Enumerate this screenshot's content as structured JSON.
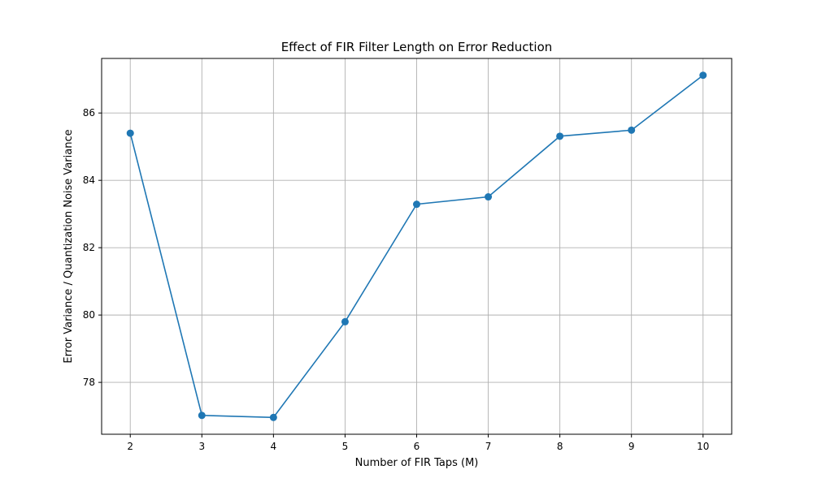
{
  "chart_data": {
    "type": "line",
    "title": "Effect of FIR Filter Length on Error Reduction",
    "xlabel": "Number of FIR Taps (M)",
    "ylabel": "Error Variance / Quantization Noise Variance",
    "x": [
      2,
      3,
      4,
      5,
      6,
      7,
      8,
      9,
      10
    ],
    "series": [
      {
        "values": [
          85.4,
          77.02,
          76.96,
          79.8,
          83.29,
          83.51,
          85.31,
          85.49,
          87.12
        ],
        "color": "#1f77b4",
        "marker": "circle"
      }
    ],
    "xticks": [
      2,
      3,
      4,
      5,
      6,
      7,
      8,
      9,
      10
    ],
    "yticks": [
      78,
      80,
      82,
      84,
      86
    ],
    "xlim": [
      1.6,
      10.4
    ],
    "ylim": [
      76.46,
      87.62
    ],
    "grid": true
  }
}
